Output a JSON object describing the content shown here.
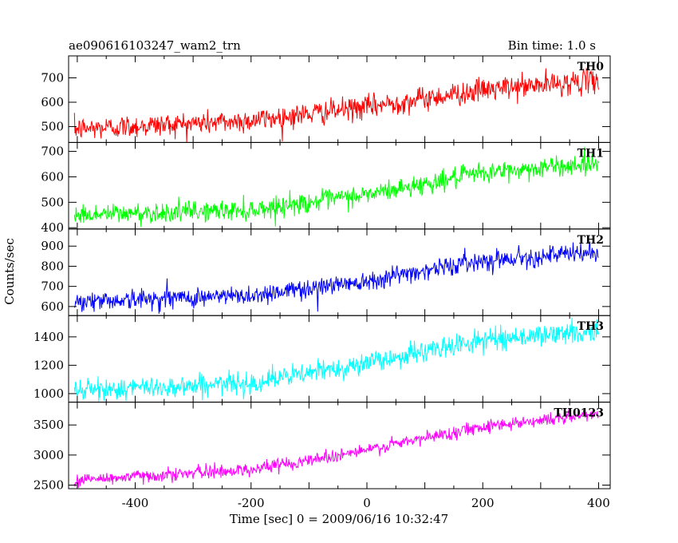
{
  "header": {
    "left_title": "ae090616103247_wam2_trn",
    "right_title": "Bin time: 1.0 s"
  },
  "chart_data": {
    "type": "line",
    "xlabel": "Time [sec] 0 = 2009/06/16 10:32:47",
    "ylabel": "Counts/sec",
    "xlim": [
      -515,
      420
    ],
    "x_ticks": [
      -400,
      -200,
      0,
      200,
      400
    ],
    "x_range_data": [
      -505,
      400
    ],
    "bin_time": 1.0,
    "panels": [
      {
        "label": "TH0",
        "color": "#ff0000",
        "ylim": [
          435,
          790
        ],
        "y_ticks": [
          500,
          600,
          700
        ],
        "trend": [
          [
            -505,
            490
          ],
          [
            -200,
            525
          ],
          [
            0,
            580
          ],
          [
            200,
            650
          ],
          [
            400,
            690
          ]
        ],
        "noise_sd": 24,
        "spikes": []
      },
      {
        "label": "TH1",
        "color": "#00ff00",
        "ylim": [
          395,
          735
        ],
        "y_ticks": [
          400,
          500,
          600,
          700
        ],
        "trend": [
          [
            -505,
            450
          ],
          [
            -200,
            470
          ],
          [
            0,
            530
          ],
          [
            200,
            615
          ],
          [
            400,
            655
          ]
        ],
        "noise_sd": 20,
        "spikes": []
      },
      {
        "label": "TH2",
        "color": "#0000ff",
        "ylim": [
          555,
          985
        ],
        "y_ticks": [
          600,
          700,
          800,
          900
        ],
        "trend": [
          [
            -505,
            625
          ],
          [
            -200,
            655
          ],
          [
            0,
            730
          ],
          [
            200,
            830
          ],
          [
            400,
            870
          ]
        ],
        "noise_sd": 24,
        "spikes": [
          [
            -345,
            740
          ],
          [
            -85,
            575
          ]
        ]
      },
      {
        "label": "TH3",
        "color": "#00ffff",
        "ylim": [
          940,
          1550
        ],
        "y_ticks": [
          1000,
          1200,
          1400
        ],
        "trend": [
          [
            -505,
            1020
          ],
          [
            -200,
            1075
          ],
          [
            0,
            1215
          ],
          [
            200,
            1380
          ],
          [
            400,
            1440
          ]
        ],
        "noise_sd": 38,
        "spikes": []
      },
      {
        "label": "TH0123",
        "color": "#ff00ff",
        "ylim": [
          2440,
          3880
        ],
        "y_ticks": [
          2500,
          3000,
          3500
        ],
        "trend": [
          [
            -505,
            2580
          ],
          [
            -200,
            2760
          ],
          [
            0,
            3080
          ],
          [
            200,
            3480
          ],
          [
            400,
            3680
          ]
        ],
        "noise_sd": 55,
        "spikes": []
      }
    ]
  }
}
